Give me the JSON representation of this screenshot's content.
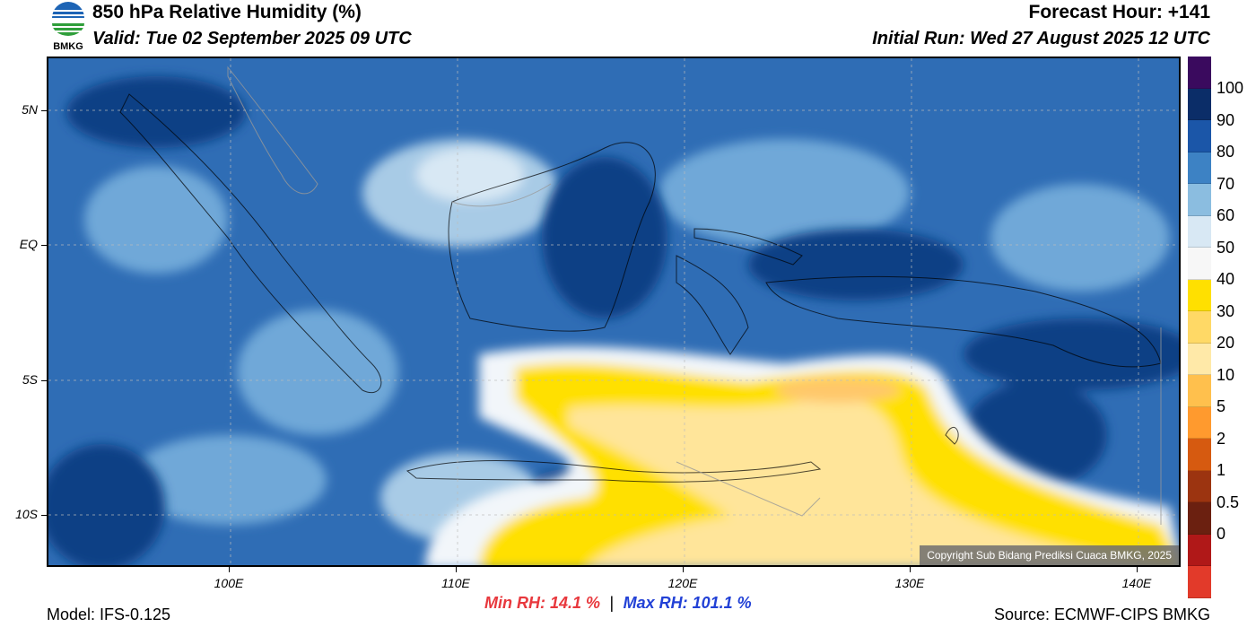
{
  "header": {
    "title": "850 hPa Relative Humidity (%)",
    "valid": "Valid: Tue 02 September 2025 09 UTC",
    "forecast_hour": "Forecast Hour: +141",
    "initial_run": "Initial Run: Wed 27 August 2025 12 UTC",
    "logo_text": "BMKG"
  },
  "axes": {
    "y_labels": [
      "5N",
      "EQ",
      "5S",
      "10S"
    ],
    "x_labels": [
      "100E",
      "110E",
      "120E",
      "130E",
      "140E"
    ]
  },
  "colorbar": {
    "colors": [
      "#3a0a5e",
      "#0b2d68",
      "#1b56a8",
      "#3d82c4",
      "#8bbde0",
      "#d8e8f4",
      "#f7f7f7",
      "#ffe000",
      "#ffd966",
      "#ffe9a8",
      "#ffc04d",
      "#ff9a2e",
      "#d65a10",
      "#9c3410",
      "#6b2010",
      "#b01818",
      "#e23a2a"
    ],
    "labels": [
      "100",
      "90",
      "80",
      "70",
      "60",
      "50",
      "40",
      "30",
      "20",
      "10",
      "5",
      "2",
      "1",
      "0.5",
      "0"
    ]
  },
  "map": {
    "copyright": "Copyright Sub Bidang Prediksi Cuaca BMKG, 2025"
  },
  "footer": {
    "model": "Model: IFS-0.125",
    "min_rh": "Min RH:  14.1 %",
    "separator": "|",
    "max_rh": "Max RH: 101.1 %",
    "source": "Source: ECMWF-CIPS BMKG"
  }
}
